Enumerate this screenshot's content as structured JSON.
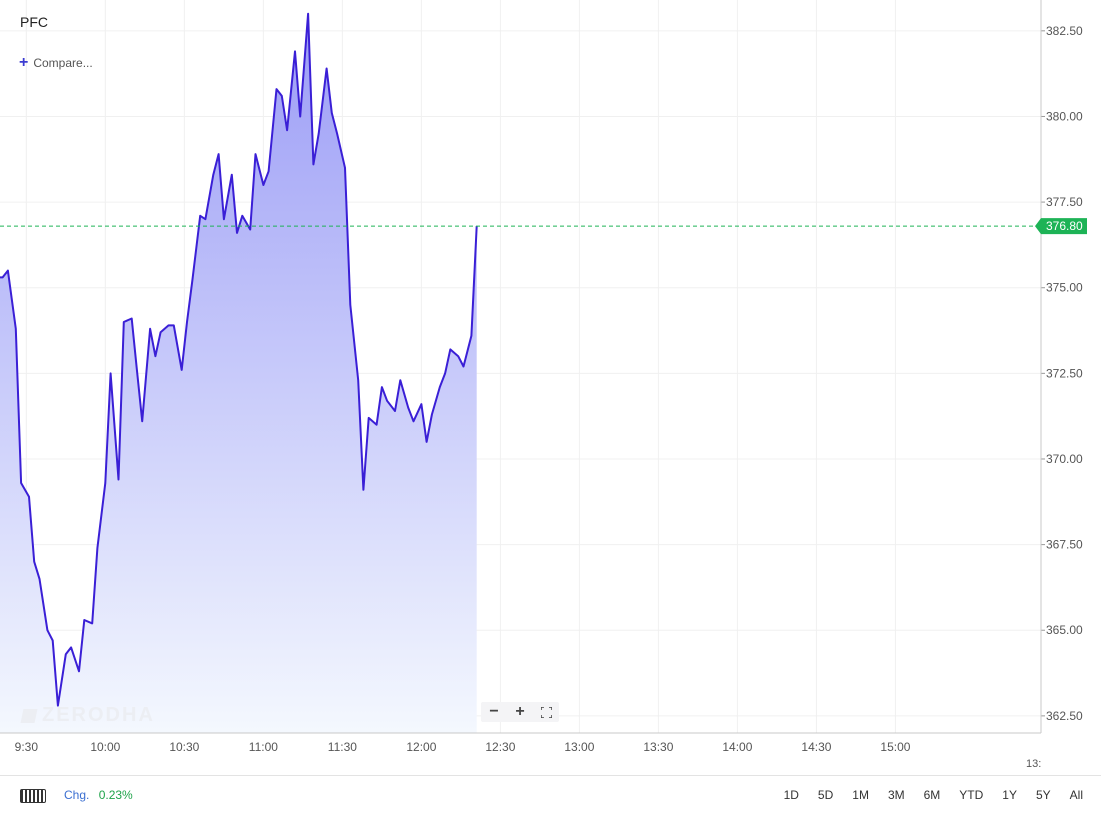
{
  "header": {
    "symbol": "PFC",
    "compare_label": "Compare..."
  },
  "watermark": "ZERODHA",
  "controls": {
    "zoom_out": "−",
    "zoom_in": "+",
    "fullscreen_icon": "fullscreen-icon"
  },
  "footer": {
    "keyboard_icon": "keyboard-icon",
    "chg_label": "Chg.",
    "chg_value": "0.23%",
    "ranges": [
      "1D",
      "5D",
      "1M",
      "3M",
      "6M",
      "YTD",
      "1Y",
      "5Y",
      "All"
    ]
  },
  "colors": {
    "line": "#3a1fd6",
    "area_top": "#9b9cf6",
    "area_bottom": "#f4f8fe",
    "last_price": "#1db356",
    "grid": "#f0f0f0"
  },
  "chart_data": {
    "type": "area",
    "title": "",
    "xlabel": "",
    "ylabel": "",
    "ylim": [
      362.0,
      383.4
    ],
    "yticks": [
      362.5,
      365.0,
      367.5,
      370.0,
      372.5,
      375.0,
      377.5,
      380.0,
      382.5
    ],
    "ytick_labels": [
      "362.50",
      "365.00",
      "367.50",
      "370.00",
      "372.50",
      "375.00",
      "377.50",
      "380.00",
      "382.50"
    ],
    "xlim": [
      "09:20",
      "15:53"
    ],
    "xticks": [
      "09:30",
      "10:00",
      "10:30",
      "11:00",
      "11:30",
      "12:00",
      "12:30",
      "13:00",
      "13:30",
      "14:00",
      "14:30",
      "15:00"
    ],
    "xtick_labels": [
      "9:30",
      "10:00",
      "10:30",
      "11:00",
      "11:30",
      "12:00",
      "12:30",
      "13:00",
      "13:30",
      "14:00",
      "14:30",
      "15:00"
    ],
    "xtick_cut_label": "13:",
    "last_price": 376.8,
    "last_price_label": "376.80",
    "grid": true,
    "series": [
      {
        "x": [
          "09:20",
          "09:21",
          "09:23",
          "09:26",
          "09:28",
          "09:31",
          "09:33",
          "09:35",
          "09:38",
          "09:40",
          "09:42",
          "09:45",
          "09:47",
          "09:50",
          "09:52",
          "09:55",
          "09:57",
          "10:00",
          "10:02",
          "10:05",
          "10:07",
          "10:10",
          "10:12",
          "10:14",
          "10:17",
          "10:19",
          "10:21",
          "10:24",
          "10:26",
          "10:29",
          "10:31",
          "10:33",
          "10:36",
          "10:38",
          "10:41",
          "10:43",
          "10:45",
          "10:48",
          "10:50",
          "10:52",
          "10:55",
          "10:57",
          "11:00",
          "11:02",
          "11:05",
          "11:07",
          "11:09",
          "11:12",
          "11:14",
          "11:17",
          "11:19",
          "11:21",
          "11:24",
          "11:26",
          "11:28",
          "11:31",
          "11:33",
          "11:36",
          "11:38",
          "11:40",
          "11:43",
          "11:45",
          "11:47",
          "11:50",
          "11:52",
          "11:55",
          "11:57",
          "12:00",
          "12:02",
          "12:04",
          "12:07",
          "12:09",
          "12:11",
          "12:14",
          "12:16",
          "12:19",
          "12:21",
          "12:23",
          "12:26",
          "12:28",
          "12:30",
          "12:33",
          "12:35",
          "12:38",
          "12:40",
          "12:42",
          "12:45",
          "12:47",
          "12:49",
          "12:52",
          "12:54",
          "12:57",
          "12:59",
          "13:02",
          "13:04",
          "13:06",
          "13:09",
          "13:11",
          "13:14",
          "13:16",
          "13:18",
          "13:21",
          "13:23",
          "13:26",
          "13:28",
          "13:31",
          "13:33",
          "13:35",
          "13:38",
          "13:40",
          "13:43",
          "13:45",
          "13:47",
          "13:50",
          "13:52",
          "13:54",
          "13:57",
          "13:59",
          "14:02",
          "14:04",
          "14:06",
          "14:09",
          "14:11",
          "14:14",
          "14:16",
          "14:18",
          "14:21",
          "14:23",
          "14:25",
          "14:28",
          "14:30",
          "14:33",
          "14:35",
          "14:37",
          "14:40",
          "14:42",
          "14:44",
          "14:47",
          "14:49",
          "14:52",
          "14:54",
          "14:56",
          "14:59",
          "15:01",
          "15:04",
          "15:06",
          "15:08",
          "15:11",
          "15:13",
          "15:15",
          "15:18",
          "15:20",
          "15:23",
          "15:25",
          "15:27",
          "15:30",
          "15:32",
          "15:35",
          "15:37",
          "15:39",
          "15:42",
          "15:44",
          "15:46",
          "15:49",
          "15:51",
          "15:53"
        ],
        "y": [
          375.3,
          375.3,
          375.5,
          373.8,
          369.3,
          368.9,
          367.0,
          366.5,
          365.0,
          364.7,
          362.8,
          364.3,
          364.5,
          363.8,
          365.3,
          365.2,
          367.4,
          369.3,
          372.5,
          369.4,
          374.0,
          374.1,
          372.6,
          371.1,
          373.8,
          373.0,
          373.7,
          373.9,
          373.9,
          372.6,
          374.0,
          375.2,
          377.1,
          377.0,
          378.3,
          378.9,
          377.0,
          378.3,
          376.6,
          377.1,
          376.7,
          378.9,
          378.0,
          378.4,
          380.8,
          380.6,
          379.6,
          381.9,
          380.0,
          383.0,
          378.6,
          379.5,
          381.4,
          380.1,
          379.5,
          378.5,
          374.5,
          372.3,
          369.1,
          371.2,
          371.0,
          372.1,
          371.7,
          371.4,
          372.3,
          371.5,
          371.1,
          371.6,
          370.5,
          371.3,
          372.1,
          372.5,
          373.2,
          373.0,
          372.7,
          373.6,
          376.8,
          376.8,
          376.8,
          376.8,
          376.8,
          376.8,
          376.8,
          376.8,
          376.8,
          376.8,
          376.8,
          376.8,
          376.8,
          376.8,
          376.8,
          376.8,
          376.8,
          376.8,
          376.8,
          376.8,
          376.8,
          376.8,
          376.8,
          376.8,
          376.8,
          376.8,
          376.8,
          376.8,
          376.8,
          376.8,
          376.8,
          376.8,
          376.8,
          376.8,
          376.8,
          376.8,
          376.8,
          376.8,
          376.8,
          376.8,
          376.8,
          376.8,
          376.8,
          376.8,
          376.8,
          376.8,
          376.8,
          376.8,
          376.8,
          376.8,
          376.8,
          376.8,
          376.8,
          376.8,
          376.8,
          376.8,
          376.8,
          376.8,
          376.8,
          376.8,
          376.8,
          376.8,
          376.8,
          376.8,
          376.8,
          376.8,
          376.8,
          376.8,
          376.8,
          376.8,
          376.8,
          376.8,
          376.8,
          376.8,
          376.8,
          376.8,
          376.8,
          376.8,
          376.8,
          376.8,
          376.8,
          376.8,
          376.8,
          376.8,
          376.8,
          376.8,
          376.8,
          376.8,
          376.8,
          376.8
        ]
      }
    ]
  }
}
